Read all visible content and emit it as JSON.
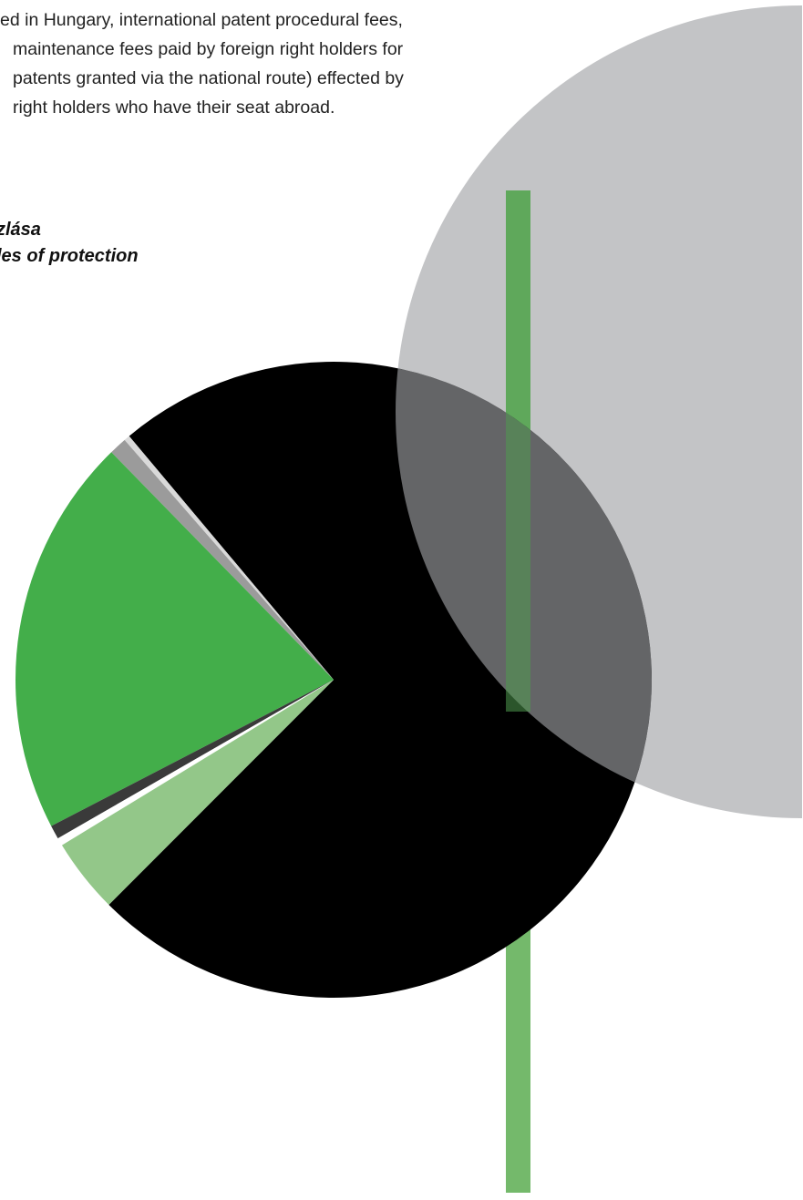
{
  "body_text": {
    "lines": [
      "ed in Hungary, international patent procedural fees,",
      "maintenance fees paid by foreign right holders for",
      "patents granted via the national route) effected by",
      "right holders who have their seat abroad."
    ]
  },
  "chart_title": {
    "line_hu": "zlása",
    "line_en": "les of protection"
  },
  "colors": {
    "black": "#000000",
    "green": "#43ae4a",
    "light_green": "#93c789",
    "dark_gray": "#3a3a3a",
    "gray": "#9b9b9b",
    "light_gray": "#d9d9d9",
    "circle_gray": "#a3a5a8",
    "bar_green": "#4f9a4f"
  },
  "chart_data": {
    "type": "pie",
    "title": "",
    "legend": "none",
    "slices": [
      {
        "value": 73.6,
        "color": "#000000"
      },
      {
        "value": 0.3,
        "color": "#d9d9d9"
      },
      {
        "value": 0.9,
        "color": "#9b9b9b"
      },
      {
        "value": 20.3,
        "color": "#43ae4a"
      },
      {
        "value": 0.7,
        "color": "#3a3a3a"
      },
      {
        "value": 0.4,
        "color": "#ffffff"
      },
      {
        "value": 3.8,
        "color": "#93c789"
      }
    ]
  }
}
